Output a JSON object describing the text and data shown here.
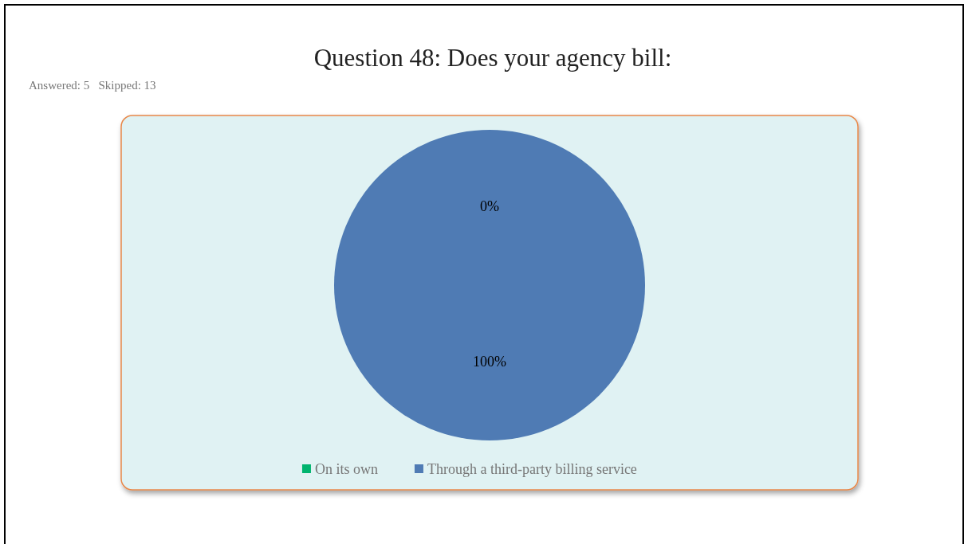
{
  "chart_data": {
    "type": "pie",
    "title": "Question 48: Does your agency bill:",
    "subtitle": "Answered: 5   Skipped: 13",
    "categories": [
      "On its own",
      "Through a third-party billing service"
    ],
    "values": [
      0,
      100
    ],
    "colors": [
      "#00b46e",
      "#4f7bb4"
    ],
    "value_labels": [
      "0%",
      "100%"
    ],
    "legend": "bottom"
  }
}
